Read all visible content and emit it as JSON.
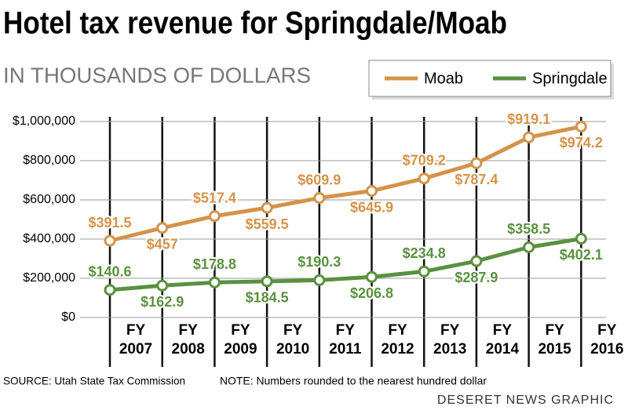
{
  "chart_data": {
    "type": "line",
    "title": "Hotel tax revenue for Springdale/Moab",
    "subtitle": "IN THOUSANDS OF DOLLARS",
    "categories": [
      "FY 2007",
      "FY 2008",
      "FY 2009",
      "FY 2010",
      "FY 2011",
      "FY 2012",
      "FY 2013",
      "FY 2014",
      "FY 2015",
      "FY 2016"
    ],
    "series": [
      {
        "name": "Moab",
        "color": "#d4934a",
        "values": [
          391500,
          457000,
          517400,
          559500,
          609900,
          645900,
          709200,
          787400,
          919100,
          974200
        ],
        "value_labels": [
          "$391.5",
          "$457",
          "$517.4",
          "$559.5",
          "$609.9",
          "$645.9",
          "$709.2",
          "$787.4",
          "$919.1",
          "$974.2"
        ]
      },
      {
        "name": "Springdale",
        "color": "#5a9140",
        "values": [
          140600,
          162900,
          178800,
          184500,
          190300,
          206800,
          234800,
          287900,
          358500,
          402100
        ],
        "value_labels": [
          "$140.6",
          "$162.9",
          "$178.8",
          "$184.5",
          "$190.3",
          "$206.8",
          "$234.8",
          "$287.9",
          "$358.5",
          "$402.1"
        ]
      }
    ],
    "ylim": [
      0,
      1000000
    ],
    "yticks": [
      {
        "value": 0,
        "label": "$0"
      },
      {
        "value": 200000,
        "label": "$200,000"
      },
      {
        "value": 400000,
        "label": "$400,000"
      },
      {
        "value": 600000,
        "label": "$600,000"
      },
      {
        "value": 800000,
        "label": "$800,000"
      },
      {
        "value": 1000000,
        "label": "$1,000,000"
      }
    ],
    "grid": true,
    "legend": "top-right",
    "source": "SOURCE: Utah State Tax Commission",
    "note": "NOTE: Numbers rounded to the nearest hundred dollar",
    "credit": "DESERET NEWS GRAPHIC"
  }
}
